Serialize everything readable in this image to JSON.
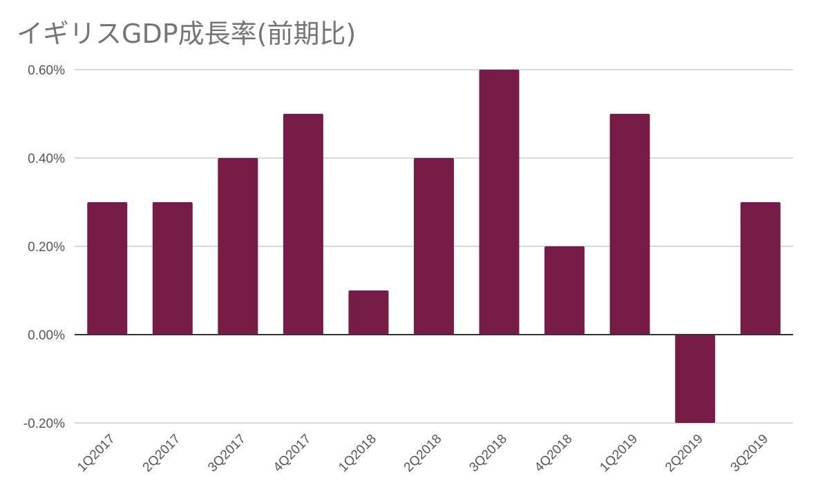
{
  "chart_data": {
    "type": "bar",
    "title": "イギリスGDP成長率(前期比)",
    "xlabel": "",
    "ylabel": "",
    "categories": [
      "1Q2017",
      "2Q2017",
      "3Q2017",
      "4Q2017",
      "1Q2018",
      "2Q2018",
      "3Q2018",
      "4Q2018",
      "1Q2019",
      "2Q2019",
      "3Q2019"
    ],
    "values": [
      0.3,
      0.3,
      0.4,
      0.5,
      0.1,
      0.4,
      0.6,
      0.2,
      0.5,
      -0.2,
      0.3
    ],
    "ylim": [
      -0.2,
      0.6
    ],
    "yticks": [
      -0.2,
      0.0,
      0.2,
      0.4,
      0.6
    ],
    "ytick_labels": [
      "-0.20%",
      "0.00%",
      "0.20%",
      "0.40%",
      "0.60%"
    ],
    "grid": true,
    "legend": "none",
    "bar_color": "#761c46",
    "grid_color": "#cccccc",
    "zero_line_color": "#333333"
  }
}
